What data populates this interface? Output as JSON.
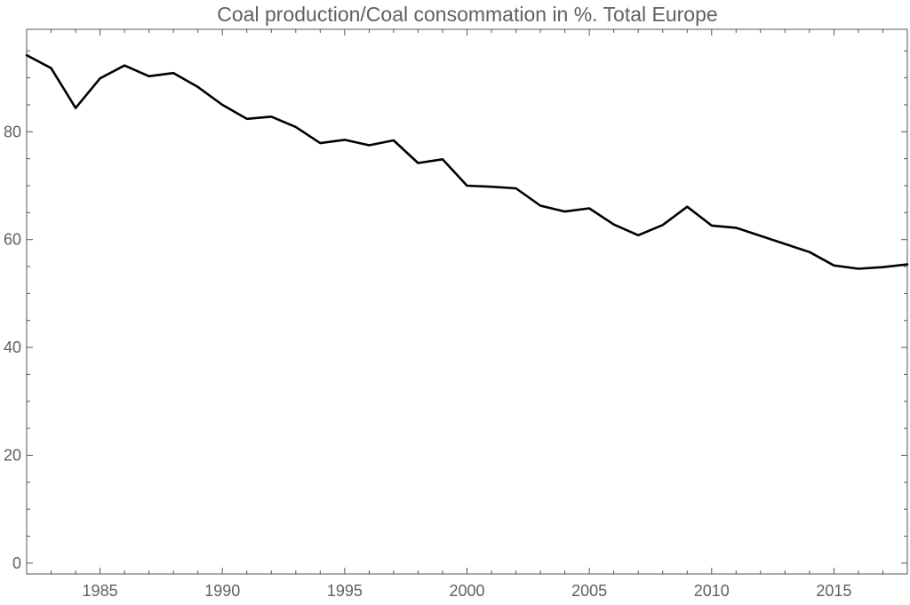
{
  "chart_data": {
    "type": "line",
    "title": "Coal production/Coal consommation in %. Total Europe",
    "xlabel": "",
    "ylabel": "",
    "xlim": [
      1982,
      2018
    ],
    "ylim": [
      -2,
      99
    ],
    "x_ticks": [
      1985,
      1990,
      1995,
      2000,
      2005,
      2010,
      2015
    ],
    "y_ticks": [
      0,
      20,
      40,
      60,
      80
    ],
    "grid": false,
    "legend": "none",
    "colors": {
      "line": "#000000",
      "frame": "#555555",
      "tick_label": "#606060",
      "title": "#606060"
    },
    "series": [
      {
        "x": [
          1982,
          1983,
          1984,
          1985,
          1986,
          1987,
          1988,
          1989,
          1990,
          1991,
          1992,
          1993,
          1994,
          1995,
          1996,
          1997,
          1998,
          1999,
          2000,
          2001,
          2002,
          2003,
          2004,
          2005,
          2006,
          2007,
          2008,
          2009,
          2010,
          2011,
          2012,
          2013,
          2014,
          2015,
          2016,
          2017,
          2018
        ],
        "values": [
          94.2,
          91.8,
          84.4,
          89.9,
          92.3,
          90.3,
          90.9,
          88.3,
          85.0,
          82.4,
          82.8,
          80.9,
          77.9,
          78.5,
          77.5,
          78.4,
          74.2,
          74.9,
          70.0,
          69.8,
          69.5,
          66.3,
          65.2,
          65.8,
          62.8,
          60.8,
          62.7,
          66.1,
          62.6,
          62.2,
          60.7,
          59.2,
          57.7,
          55.2,
          54.6,
          54.9,
          55.4
        ]
      }
    ]
  }
}
